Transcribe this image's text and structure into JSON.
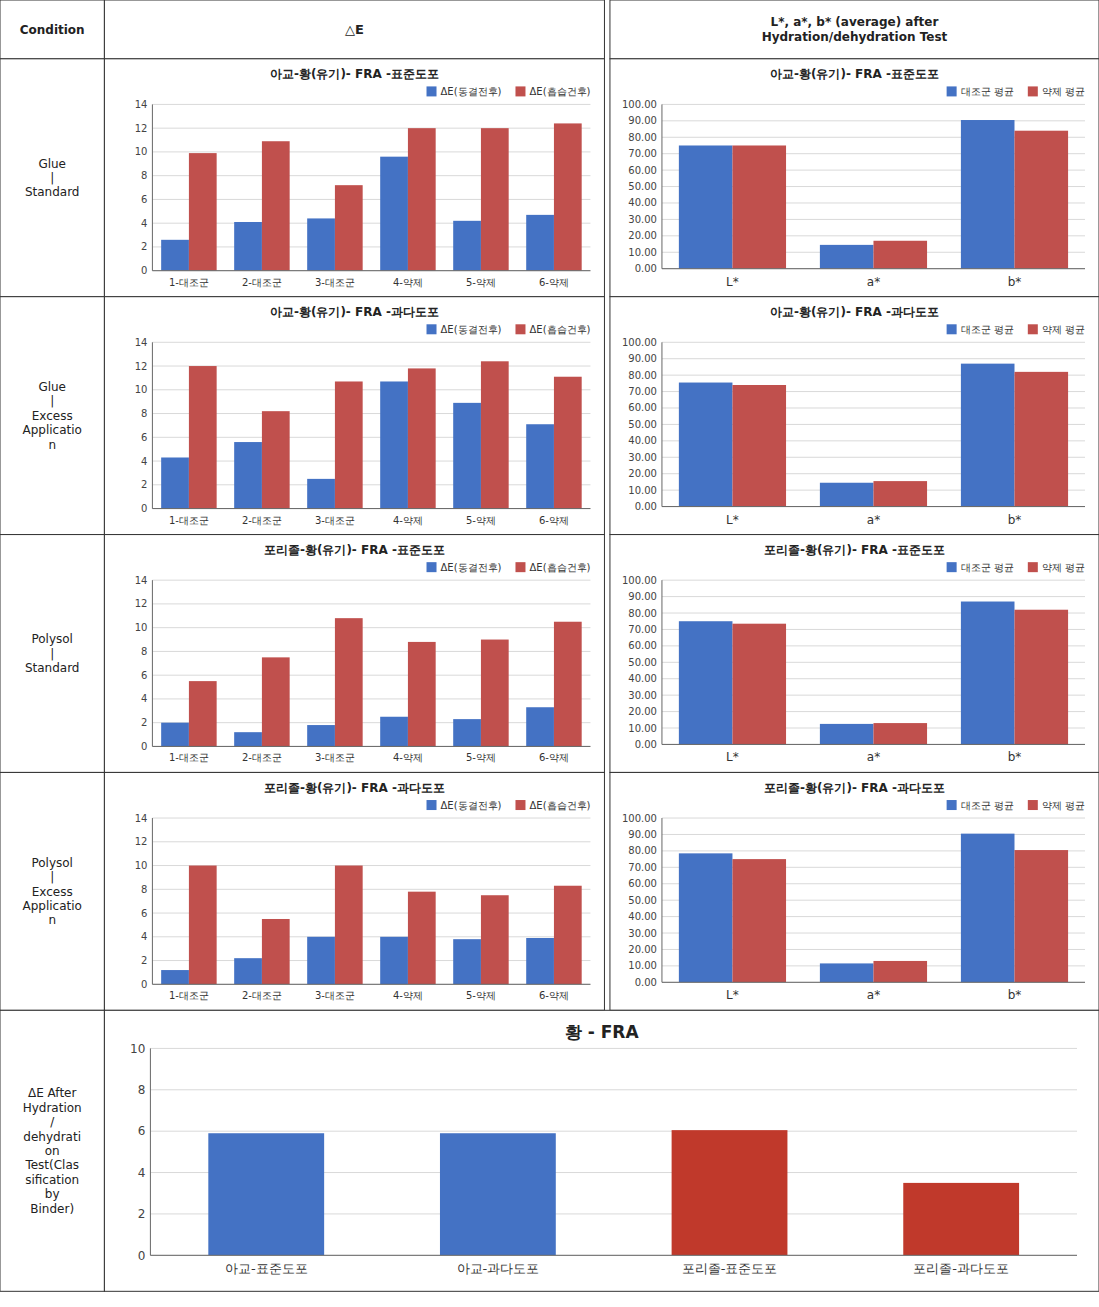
{
  "headers": [
    "Condition",
    "△E",
    "L*, a*, b* (average) after\nHydration/dehydration Test"
  ],
  "row_labels": [
    "Glue\n|\nStandard",
    "Glue\n|\nExcess\nApplicatio\nn",
    "Polysol\n|\nStandard",
    "Polysol\n|\nExcess\nApplicatio\nn",
    "ΔE After\nHydration\n/\ndehydrati\non\nTest(Clas\nsification\nby\nBinder)"
  ],
  "chart_data": [
    {
      "type": "bar",
      "title": "아교-황(유기)- FRA -표준도포",
      "categories": [
        "1-대조군",
        "2-대조군",
        "3-대조군",
        "4-약제",
        "5-약제",
        "6-약제"
      ],
      "series": [
        {
          "name": "ΔE(동결전후)",
          "color": "#4472C4",
          "values": [
            2.6,
            4.1,
            4.4,
            9.6,
            4.2,
            4.7
          ]
        },
        {
          "name": "ΔE(흡습건후)",
          "color": "#C0504D",
          "values": [
            9.9,
            10.9,
            7.2,
            12.0,
            12.0,
            12.4
          ]
        }
      ],
      "ylim": [
        0,
        14
      ],
      "yticks": [
        0,
        2,
        4,
        6,
        8,
        10,
        12,
        14
      ],
      "grid": true,
      "legend": "upper right"
    },
    {
      "type": "bar",
      "title": "아교-황(유기)- FRA -표준도포",
      "categories": [
        "L*",
        "a*",
        "b*"
      ],
      "series": [
        {
          "name": "대조군 평균",
          "color": "#4472C4",
          "values": [
            75.0,
            14.5,
            90.5
          ]
        },
        {
          "name": "약제 평균",
          "color": "#C0504D",
          "values": [
            75.0,
            17.0,
            84.0
          ]
        }
      ],
      "ylim": [
        0,
        100
      ],
      "yticks": [
        {
          "value": 0,
          "label": "0.00"
        },
        {
          "value": 10,
          "label": "10.00"
        },
        {
          "value": 20,
          "label": "20.00"
        },
        {
          "value": 30,
          "label": "30.00"
        },
        {
          "value": 40,
          "label": "40.00"
        },
        {
          "value": 50,
          "label": "50.00"
        },
        {
          "value": 60,
          "label": "60.00"
        },
        {
          "value": 70,
          "label": "70.00"
        },
        {
          "value": 80,
          "label": "80.00"
        },
        {
          "value": 90,
          "label": "90.00"
        },
        {
          "value": 100,
          "label": "100.00"
        }
      ],
      "grid": true,
      "legend": "upper right"
    },
    {
      "type": "bar",
      "title": "아교-황(유기)- FRA -과다도포",
      "categories": [
        "1-대조군",
        "2-대조군",
        "3-대조군",
        "4-약제",
        "5-약제",
        "6-약제"
      ],
      "series": [
        {
          "name": "ΔE(동결전후)",
          "color": "#4472C4",
          "values": [
            4.3,
            5.6,
            2.5,
            10.7,
            8.9,
            7.1
          ]
        },
        {
          "name": "ΔE(흡습건후)",
          "color": "#C0504D",
          "values": [
            12.0,
            8.2,
            10.7,
            11.8,
            12.4,
            11.1
          ]
        }
      ],
      "ylim": [
        0,
        14
      ],
      "yticks": [
        0,
        2,
        4,
        6,
        8,
        10,
        12,
        14
      ],
      "grid": true,
      "legend": "upper right"
    },
    {
      "type": "bar",
      "title": "아교-황(유기)- FRA -과다도포",
      "categories": [
        "L*",
        "a*",
        "b*"
      ],
      "series": [
        {
          "name": "대조군 평균",
          "color": "#4472C4",
          "values": [
            75.5,
            14.5,
            87.0
          ]
        },
        {
          "name": "약제 평균",
          "color": "#C0504D",
          "values": [
            74.0,
            15.5,
            82.0
          ]
        }
      ],
      "ylim": [
        0,
        100
      ],
      "yticks": [
        {
          "value": 0,
          "label": "0.00"
        },
        {
          "value": 10,
          "label": "10.00"
        },
        {
          "value": 20,
          "label": "20.00"
        },
        {
          "value": 30,
          "label": "30.00"
        },
        {
          "value": 40,
          "label": "40.00"
        },
        {
          "value": 50,
          "label": "50.00"
        },
        {
          "value": 60,
          "label": "60.00"
        },
        {
          "value": 70,
          "label": "70.00"
        },
        {
          "value": 80,
          "label": "80.00"
        },
        {
          "value": 90,
          "label": "90.00"
        },
        {
          "value": 100,
          "label": "100.00"
        }
      ],
      "grid": true,
      "legend": "upper right"
    },
    {
      "type": "bar",
      "title": "포리졸-황(유기)- FRA -표준도포",
      "categories": [
        "1-대조군",
        "2-대조군",
        "3-대조군",
        "4-약제",
        "5-약제",
        "6-약제"
      ],
      "series": [
        {
          "name": "ΔE(동결전후)",
          "color": "#4472C4",
          "values": [
            2.0,
            1.2,
            1.8,
            2.5,
            2.3,
            3.3
          ]
        },
        {
          "name": "ΔE(흡습건후)",
          "color": "#C0504D",
          "values": [
            5.5,
            7.5,
            10.8,
            8.8,
            9.0,
            10.5
          ]
        }
      ],
      "ylim": [
        0,
        14
      ],
      "yticks": [
        0,
        2,
        4,
        6,
        8,
        10,
        12,
        14
      ],
      "grid": true,
      "legend": "upper right"
    },
    {
      "type": "bar",
      "title": "포리졸-황(유기)- FRA -표준도포",
      "categories": [
        "L*",
        "a*",
        "b*"
      ],
      "series": [
        {
          "name": "대조군 평균",
          "color": "#4472C4",
          "values": [
            75.0,
            12.5,
            87.0
          ]
        },
        {
          "name": "약제 평균",
          "color": "#C0504D",
          "values": [
            73.5,
            13.0,
            82.0
          ]
        }
      ],
      "ylim": [
        0,
        100
      ],
      "yticks": [
        {
          "value": 0,
          "label": "0.00"
        },
        {
          "value": 10,
          "label": "10.00"
        },
        {
          "value": 20,
          "label": "20.00"
        },
        {
          "value": 30,
          "label": "30.00"
        },
        {
          "value": 40,
          "label": "40.00"
        },
        {
          "value": 50,
          "label": "50.00"
        },
        {
          "value": 60,
          "label": "60.00"
        },
        {
          "value": 70,
          "label": "70.00"
        },
        {
          "value": 80,
          "label": "80.00"
        },
        {
          "value": 90,
          "label": "90.00"
        },
        {
          "value": 100,
          "label": "100.00"
        }
      ],
      "grid": true,
      "legend": "upper right"
    },
    {
      "type": "bar",
      "title": "포리졸-황(유기)- FRA -과다도포",
      "categories": [
        "1-대조군",
        "2-대조군",
        "3-대조군",
        "4-약제",
        "5-약제",
        "6-약제"
      ],
      "series": [
        {
          "name": "ΔE(동결전후)",
          "color": "#4472C4",
          "values": [
            1.2,
            2.2,
            4.0,
            4.0,
            3.8,
            3.9
          ]
        },
        {
          "name": "ΔE(흡습건후)",
          "color": "#C0504D",
          "values": [
            10.0,
            5.5,
            10.0,
            7.8,
            7.5,
            8.3
          ]
        }
      ],
      "ylim": [
        0,
        14
      ],
      "yticks": [
        0,
        2,
        4,
        6,
        8,
        10,
        12,
        14
      ],
      "grid": true,
      "legend": "upper right"
    },
    {
      "type": "bar",
      "title": "포리졸-황(유기)- FRA -과다도포",
      "categories": [
        "L*",
        "a*",
        "b*"
      ],
      "series": [
        {
          "name": "대조군 평균",
          "color": "#4472C4",
          "values": [
            78.5,
            11.5,
            90.5
          ]
        },
        {
          "name": "약제 평균",
          "color": "#C0504D",
          "values": [
            75.0,
            13.0,
            80.5
          ]
        }
      ],
      "ylim": [
        0,
        100
      ],
      "yticks": [
        {
          "value": 0,
          "label": "0.00"
        },
        {
          "value": 10,
          "label": "10.00"
        },
        {
          "value": 20,
          "label": "20.00"
        },
        {
          "value": 30,
          "label": "30.00"
        },
        {
          "value": 40,
          "label": "40.00"
        },
        {
          "value": 50,
          "label": "50.00"
        },
        {
          "value": 60,
          "label": "60.00"
        },
        {
          "value": 70,
          "label": "70.00"
        },
        {
          "value": 80,
          "label": "80.00"
        },
        {
          "value": 90,
          "label": "90.00"
        },
        {
          "value": 100,
          "label": "100.00"
        }
      ],
      "grid": true,
      "legend": "upper right"
    },
    {
      "type": "bar",
      "title": "황 - FRA",
      "categories": [
        "아교-표준도포",
        "아교-과다도포",
        "포리졸-표준도포",
        "포리졸-과다도포"
      ],
      "values": [
        5.9,
        5.9,
        6.05,
        3.5
      ],
      "colors": [
        "#4472C4",
        "#4472C4",
        "#C0392B",
        "#C0392B"
      ],
      "ylim": [
        0,
        10
      ],
      "yticks": [
        0,
        2,
        4,
        6,
        8,
        10
      ],
      "grid": true
    }
  ]
}
